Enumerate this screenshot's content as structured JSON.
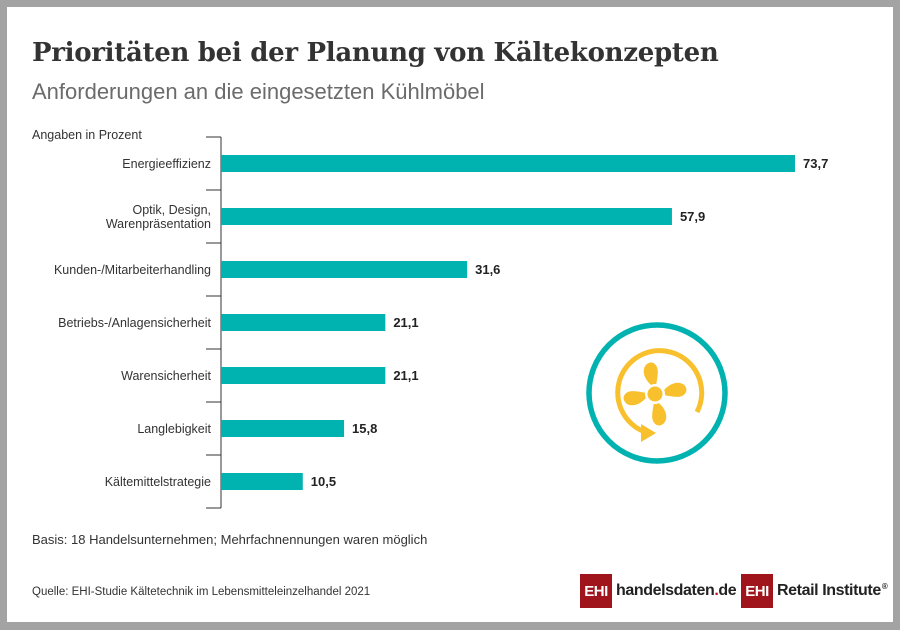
{
  "header": {
    "title": "Prioritäten bei der Planung von Kältekonzepten",
    "subtitle": "Anforderungen an die eingesetzten Kühlmöbel"
  },
  "colors": {
    "bar": "#00b2b0",
    "icon_ring": "#00b2b0",
    "icon_fan": "#f9c02e",
    "logo_red": "#a0151c",
    "frame": "#a3a3a3"
  },
  "chart_data": {
    "type": "bar",
    "orientation": "horizontal",
    "title": "Prioritäten bei der Planung von Kältekonzepten",
    "subtitle": "Anforderungen an die eingesetzten Kühlmöbel",
    "unit_label": "Angaben in Prozent",
    "xlabel": "",
    "ylabel": "",
    "categories": [
      "Energieeffizienz",
      [
        "Optik, Design,",
        "Warenpräsentation"
      ],
      "Kunden-/Mitarbeiterhandling",
      "Betriebs-/Anlagensicherheit",
      "Warensicherheit",
      "Langlebigkeit",
      "Kältemittelstrategie"
    ],
    "values": [
      73.7,
      57.9,
      31.6,
      21.1,
      21.1,
      15.8,
      10.5
    ],
    "value_labels": [
      "73,7",
      "57,9",
      "31,6",
      "21,1",
      "21,1",
      "15,8",
      "10,5"
    ],
    "xlim": [
      0,
      73.7
    ],
    "grid": false,
    "legend": "none"
  },
  "icon": {
    "name": "fan-rotation-icon"
  },
  "footer": {
    "basis": "Basis: 18 Handelsunternehmen; Mehrfachnennungen waren möglich",
    "source": "Quelle: EHI-Studie Kältetechnik im Lebensmitteleinzelhandel 2021",
    "logo1_box": "EHI",
    "logo1_text_a": "handelsdaten",
    "logo1_text_dot": ".",
    "logo1_text_b": "de",
    "logo2_box": "EHI",
    "logo2_text": "Retail Institute",
    "logo2_reg": "®"
  }
}
